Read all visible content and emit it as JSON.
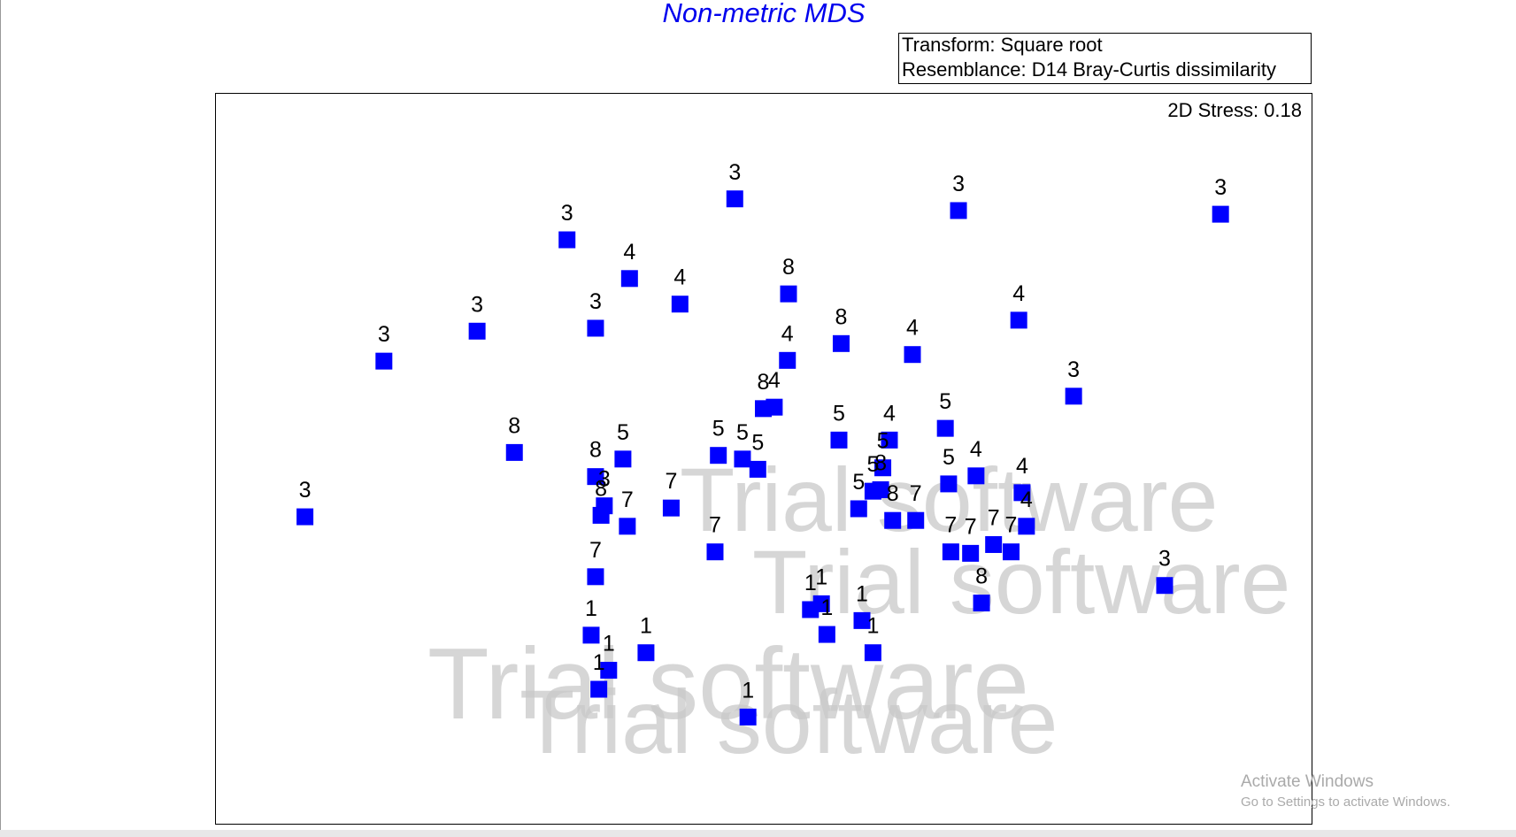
{
  "chart_data": {
    "type": "scatter",
    "title": "Non-metric MDS",
    "legend_lines": [
      "Transform: Square root",
      "Resemblance: D14 Bray-Curtis dissimilarity"
    ],
    "stress": "2D Stress: 0.18",
    "color": "#0000ff",
    "xlim": [
      0,
      100
    ],
    "ylim": [
      0,
      100
    ],
    "x": [
      8.2,
      15.4,
      23.9,
      32.1,
      34.7,
      37.8,
      42.4,
      47.4,
      67.8,
      91.7,
      52.3,
      57.1,
      52.2,
      63.6,
      73.3,
      78.3,
      50.0,
      51.0,
      27.3,
      34.7,
      37.2,
      45.9,
      48.1,
      49.5,
      56.9,
      61.5,
      60.9,
      66.6,
      66.9,
      69.4,
      73.6,
      74.0,
      35.5,
      35.2,
      37.6,
      41.6,
      45.6,
      58.7,
      60.0,
      60.7,
      61.8,
      63.9,
      67.1,
      68.9,
      71.0,
      72.6,
      69.9,
      86.6,
      34.7,
      34.3,
      35.9,
      35.0,
      39.3,
      48.6,
      54.3,
      55.3,
      55.8,
      59.0,
      60.0
    ],
    "y": [
      42.0,
      63.3,
      67.4,
      79.9,
      67.8,
      74.6,
      71.1,
      85.5,
      83.9,
      83.4,
      72.5,
      65.7,
      63.4,
      64.2,
      68.9,
      58.5,
      56.8,
      57.0,
      50.8,
      47.5,
      49.9,
      50.4,
      49.9,
      48.5,
      52.5,
      52.5,
      48.7,
      54.1,
      46.5,
      47.6,
      45.3,
      40.7,
      43.5,
      42.2,
      40.7,
      43.2,
      37.2,
      43.1,
      45.5,
      45.7,
      41.5,
      41.5,
      37.2,
      37.0,
      38.2,
      37.2,
      30.2,
      32.6,
      33.8,
      25.8,
      21.0,
      18.4,
      23.4,
      14.6,
      29.3,
      30.1,
      25.9,
      27.8,
      23.4
    ],
    "labels": [
      "3",
      "3",
      "3",
      "3",
      "3",
      "4",
      "4",
      "3",
      "3",
      "3",
      "8",
      "8",
      "4",
      "4",
      "4",
      "3",
      "8",
      "4",
      "8",
      "8",
      "5",
      "5",
      "5",
      "5",
      "5",
      "4",
      "5",
      "5",
      "5",
      "4",
      "4",
      "4",
      "3",
      "8",
      "7",
      "7",
      "7",
      "5",
      "5",
      "8",
      "8",
      "7",
      "7",
      "7",
      "7",
      "7",
      "8",
      "3",
      "7",
      "1",
      "1",
      "1",
      "1",
      "1",
      "1",
      "1",
      "1",
      "1",
      "1"
    ]
  },
  "watermarks": [
    "Trial software",
    "Trial software",
    "Trial software",
    "Trial software"
  ],
  "os_notice": {
    "title": "Activate Windows",
    "body": "Go to Settings to activate Windows."
  }
}
